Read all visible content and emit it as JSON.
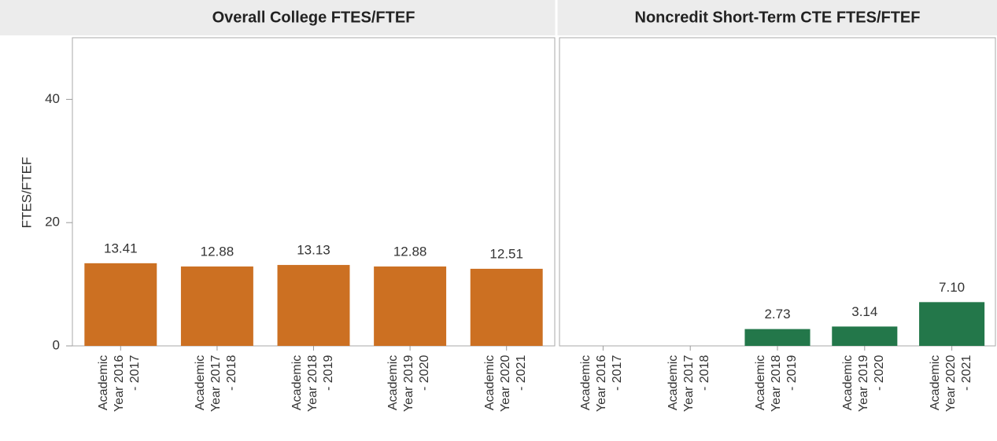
{
  "chart_data": [
    {
      "type": "bar",
      "title": "Overall College FTES/FTEF",
      "y_label": "FTES/FTEF",
      "categories": [
        "Academic Year 2016 - 2017",
        "Academic Year 2017 - 2018",
        "Academic Year 2018 - 2019",
        "Academic Year 2019 - 2020",
        "Academic Year 2020 - 2021"
      ],
      "values": [
        13.41,
        12.88,
        13.13,
        12.88,
        12.51
      ],
      "color": "#cc7022",
      "ylim": [
        0,
        50
      ],
      "yticks": [
        0,
        20,
        40
      ]
    },
    {
      "type": "bar",
      "title": "Noncredit Short-Term CTE FTES/FTEF",
      "categories": [
        "Academic Year 2016 - 2017",
        "Academic Year 2017 - 2018",
        "Academic Year 2018 - 2019",
        "Academic Year 2019 - 2020",
        "Academic Year 2020 - 2021"
      ],
      "values": [
        null,
        null,
        2.73,
        3.14,
        7.1
      ],
      "value_labels": [
        null,
        null,
        "2.73",
        "3.14",
        "7.10"
      ],
      "color": "#23774a",
      "ylim": [
        0,
        50
      ]
    }
  ]
}
